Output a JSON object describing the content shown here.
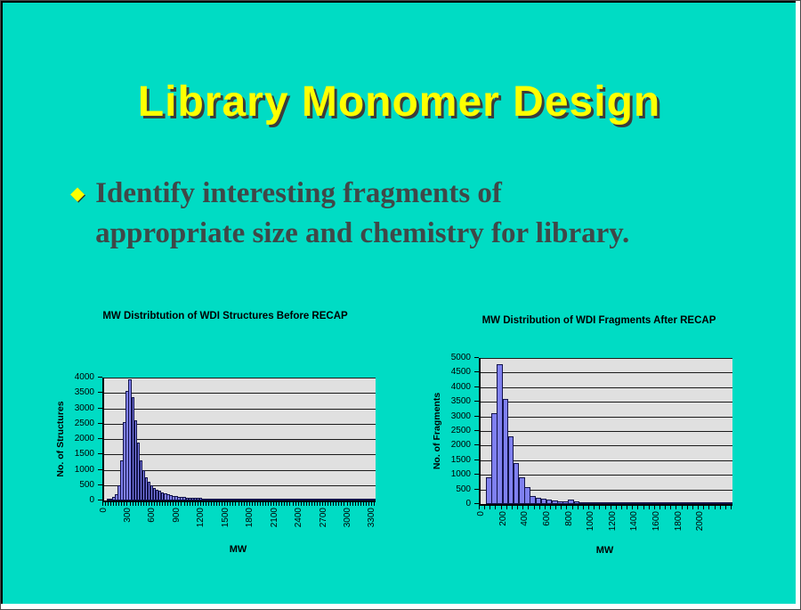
{
  "slide": {
    "title": "Library Monomer Design",
    "bullet": {
      "marker": "◆",
      "lines": [
        "Identify interesting fragments of",
        "appropriate size and chemistry for library."
      ]
    }
  },
  "colors": {
    "background": "#00dcc4",
    "title_yellow": "#ffff00",
    "title_shadow": "#3c3c3c",
    "body_text": "#3f4848",
    "bar_fill": "#7f80ef",
    "bar_border": "#13134a",
    "plot_bg": "#e0e0e0",
    "axis": "#000000"
  },
  "chart_data": [
    {
      "type": "bar",
      "title": "MW Distribtution of WDI Structures Before RECAP",
      "xlabel": "MW",
      "ylabel": "No. of Structures",
      "ylim": [
        0,
        4000
      ],
      "ystep": 500,
      "grid": true,
      "legend": "none",
      "x_tick_labels": [
        "0",
        "300",
        "600",
        "900",
        "1200",
        "1500",
        "1800",
        "2100",
        "2400",
        "2700",
        "3000",
        "3300"
      ],
      "x_tick_indices": [
        0,
        9,
        18,
        27,
        36,
        45,
        54,
        63,
        72,
        81,
        90,
        99
      ],
      "values": [
        0,
        20,
        60,
        105,
        190,
        505,
        1300,
        2550,
        3570,
        3930,
        3360,
        2600,
        1885,
        1300,
        980,
        742,
        600,
        505,
        409,
        362,
        314,
        266,
        219,
        200,
        171,
        152,
        133,
        124,
        115,
        108,
        100,
        95,
        90,
        85,
        80,
        75,
        70,
        68,
        65,
        62,
        60,
        58,
        55,
        52,
        50,
        48,
        45,
        43,
        40,
        38,
        36,
        34,
        32,
        30,
        28,
        27,
        26,
        25,
        24,
        23,
        22,
        21,
        20,
        19,
        18,
        17,
        16,
        15,
        14,
        13,
        12,
        12,
        11,
        11,
        10,
        10,
        9,
        9,
        8,
        8,
        7,
        7,
        6,
        6,
        5,
        5,
        5,
        4,
        4,
        4,
        3,
        3,
        3,
        3,
        2,
        2,
        2,
        2,
        2,
        2
      ]
    },
    {
      "type": "bar",
      "title": "MW Distribution of WDI Fragments After RECAP",
      "xlabel": "MW",
      "ylabel": "No. of Fragments",
      "ylim": [
        0,
        5000
      ],
      "ystep": 500,
      "grid": true,
      "legend": "none",
      "x_tick_labels": [
        "0",
        "200",
        "400",
        "600",
        "800",
        "1000",
        "1200",
        "1400",
        "1600",
        "1800",
        "2000"
      ],
      "x_tick_indices": [
        0,
        4,
        8,
        12,
        16,
        20,
        24,
        28,
        32,
        36,
        40
      ],
      "values": [
        0,
        900,
        3100,
        4800,
        3600,
        2330,
        1400,
        900,
        570,
        280,
        220,
        180,
        140,
        120,
        80,
        100,
        140,
        80,
        60,
        55,
        50,
        45,
        40,
        38,
        35,
        30,
        28,
        25,
        22,
        20,
        18,
        16,
        15,
        14,
        13,
        12,
        11,
        10,
        9,
        8,
        7,
        6,
        5,
        5,
        4,
        4
      ]
    }
  ]
}
